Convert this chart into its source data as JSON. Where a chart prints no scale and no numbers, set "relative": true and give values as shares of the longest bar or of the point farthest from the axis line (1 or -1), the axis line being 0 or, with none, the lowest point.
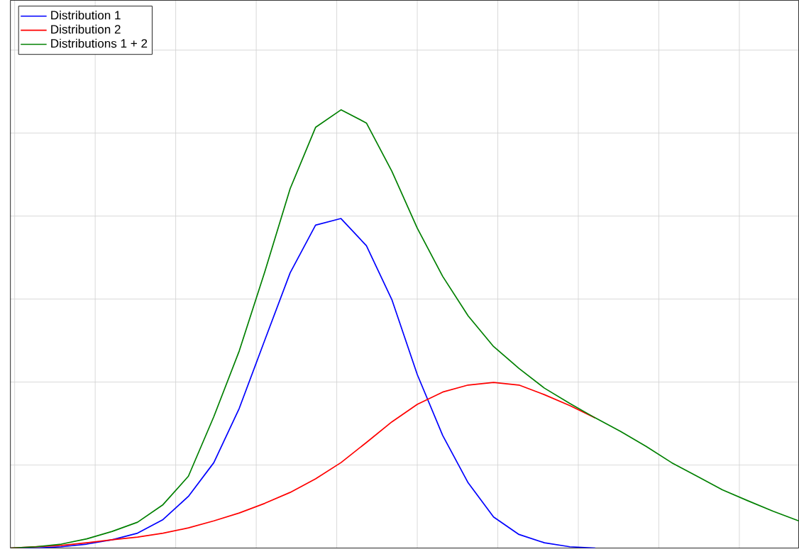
{
  "chart_data": {
    "type": "line",
    "relative": true,
    "grid": true,
    "legend": "top left",
    "marker": "none",
    "line_style": "solid",
    "categories": [
      null,
      null,
      null,
      null,
      null,
      null,
      null,
      null,
      null,
      null,
      null,
      null,
      null,
      null,
      null,
      null,
      null,
      null,
      null,
      null,
      null,
      null,
      null,
      null,
      null,
      null,
      null,
      null,
      null,
      null,
      null,
      null
    ],
    "series": [
      {
        "name": "Distribution 1",
        "color": "#0000ff",
        "values": [
          0,
          0,
          0.003,
          0.009,
          0.019,
          0.034,
          0.065,
          0.118,
          0.195,
          0.319,
          0.474,
          0.628,
          0.737,
          0.752,
          0.69,
          0.567,
          0.396,
          0.257,
          0.149,
          0.071,
          0.031,
          0.012,
          0.003,
          0,
          null,
          null,
          null,
          null,
          null,
          null,
          null,
          null
        ]
      },
      {
        "name": "Distribution 2",
        "color": "#ff0000",
        "values": [
          0,
          0.003,
          0.006,
          0.012,
          0.019,
          0.025,
          0.034,
          0.046,
          0.062,
          0.08,
          0.102,
          0.127,
          0.158,
          0.195,
          0.241,
          0.288,
          0.328,
          0.356,
          0.372,
          0.378,
          0.372,
          0.35,
          0.325,
          0.297,
          null,
          null,
          null,
          null,
          null,
          null,
          null,
          null
        ]
      },
      {
        "name": "Distributions 1 + 2",
        "color": "#008000",
        "values": [
          0,
          0.003,
          0.009,
          0.021,
          0.038,
          0.059,
          0.099,
          0.164,
          0.3,
          0.45,
          0.63,
          0.82,
          0.96,
          1.0,
          0.97,
          0.86,
          0.73,
          0.62,
          0.53,
          0.46,
          0.41,
          0.365,
          0.33,
          0.297,
          0.266,
          0.232,
          0.195,
          0.164,
          0.133,
          0.108,
          0.084,
          0.062
        ]
      }
    ]
  }
}
